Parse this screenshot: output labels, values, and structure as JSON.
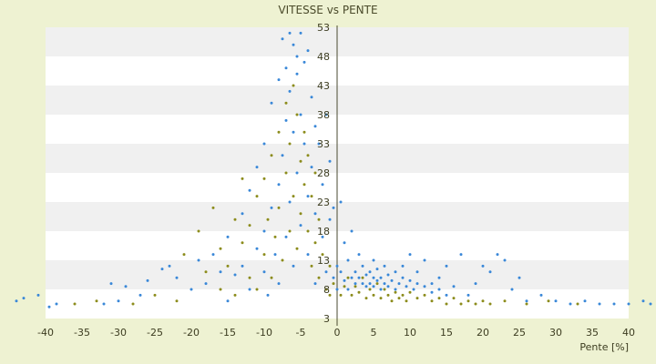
{
  "chart_data": {
    "type": "scatter",
    "title": "VITESSE vs PENTE",
    "xlabel": "Pente [%]",
    "ylabel": "",
    "xlim": [
      -40,
      40
    ],
    "ylim": [
      3,
      53
    ],
    "x_ticks": [
      -40,
      -35,
      -30,
      -25,
      -20,
      -15,
      -10,
      -5,
      0,
      5,
      10,
      15,
      20,
      25,
      30,
      35,
      40
    ],
    "y_ticks": [
      3,
      8,
      13,
      18,
      23,
      28,
      33,
      38,
      43,
      48,
      53
    ],
    "grid": "alternating horizontal bands",
    "legend": "none",
    "colors": {
      "blue_series": "#3a88d8",
      "olive_series": "#8c8c1c",
      "band_light": "#ffffff",
      "band_dark": "#f0f0f0",
      "background": "#eef2d2"
    },
    "series": [
      {
        "color": "#3a88d8",
        "points": [
          [
            -44,
            6
          ],
          [
            -41,
            7
          ],
          [
            -38.5,
            5.5
          ],
          [
            -43,
            6.5
          ],
          [
            -39.5,
            5
          ],
          [
            -32,
            5.5
          ],
          [
            -30,
            6
          ],
          [
            -31,
            9
          ],
          [
            -29,
            8.5
          ],
          [
            -27,
            7
          ],
          [
            -26,
            9.5
          ],
          [
            -24,
            11.5
          ],
          [
            -23,
            12
          ],
          [
            -22,
            10
          ],
          [
            -20,
            8
          ],
          [
            -19,
            13
          ],
          [
            -18,
            9
          ],
          [
            -17,
            14
          ],
          [
            -16,
            11
          ],
          [
            -15,
            17
          ],
          [
            -15,
            6
          ],
          [
            -14,
            10.5
          ],
          [
            -13,
            21
          ],
          [
            -13,
            12
          ],
          [
            -12,
            8
          ],
          [
            -12,
            25
          ],
          [
            -11,
            15
          ],
          [
            -11,
            29
          ],
          [
            -10,
            18
          ],
          [
            -10,
            33
          ],
          [
            -10,
            11
          ],
          [
            -9.5,
            7
          ],
          [
            -9,
            22
          ],
          [
            -9,
            40
          ],
          [
            -8.5,
            14
          ],
          [
            -8,
            26
          ],
          [
            -8,
            44
          ],
          [
            -8,
            9
          ],
          [
            -7.5,
            31
          ],
          [
            -7.5,
            51
          ],
          [
            -7,
            17
          ],
          [
            -7,
            46
          ],
          [
            -7,
            37
          ],
          [
            -6.5,
            52
          ],
          [
            -6.5,
            23
          ],
          [
            -6.5,
            42
          ],
          [
            -6,
            50
          ],
          [
            -6,
            12
          ],
          [
            -6,
            35
          ],
          [
            -5.5,
            48
          ],
          [
            -5.5,
            28
          ],
          [
            -5.5,
            45
          ],
          [
            -5,
            52
          ],
          [
            -5,
            38
          ],
          [
            -5,
            19
          ],
          [
            -4.5,
            47
          ],
          [
            -4.5,
            33
          ],
          [
            -4,
            49
          ],
          [
            -4,
            24
          ],
          [
            -4,
            14
          ],
          [
            -3.5,
            41
          ],
          [
            -3.5,
            29
          ],
          [
            -3,
            36
          ],
          [
            -3,
            21
          ],
          [
            -3,
            9
          ],
          [
            -2.5,
            33
          ],
          [
            -2,
            26
          ],
          [
            -2,
            17
          ],
          [
            -1.5,
            38
          ],
          [
            -1.5,
            11
          ],
          [
            -1,
            30
          ],
          [
            -1,
            20
          ],
          [
            -0.5,
            22
          ],
          [
            -0.5,
            10
          ],
          [
            0,
            12
          ],
          [
            0,
            8
          ],
          [
            0.5,
            23
          ],
          [
            0.5,
            11
          ],
          [
            1,
            16
          ],
          [
            1,
            9.5
          ],
          [
            1.5,
            13
          ],
          [
            1.5,
            8
          ],
          [
            2,
            10
          ],
          [
            2,
            18
          ],
          [
            2.5,
            9
          ],
          [
            2.5,
            11
          ],
          [
            3,
            14
          ],
          [
            3,
            10
          ],
          [
            3.5,
            9
          ],
          [
            3.5,
            12
          ],
          [
            4,
            8.5
          ],
          [
            4,
            10.5
          ],
          [
            4.5,
            11
          ],
          [
            4.5,
            9
          ],
          [
            5,
            13
          ],
          [
            5,
            10
          ],
          [
            5,
            8.5
          ],
          [
            5.5,
            9.5
          ],
          [
            5.5,
            11.5
          ],
          [
            6,
            10
          ],
          [
            6,
            8
          ],
          [
            6.5,
            12
          ],
          [
            6.5,
            9
          ],
          [
            7,
            10.5
          ],
          [
            7,
            8.5
          ],
          [
            7.5,
            9.5
          ],
          [
            8,
            11
          ],
          [
            8,
            8
          ],
          [
            8.5,
            9
          ],
          [
            9,
            10
          ],
          [
            9,
            12
          ],
          [
            9.5,
            8.5
          ],
          [
            10,
            9.5
          ],
          [
            10,
            14
          ],
          [
            10.5,
            8
          ],
          [
            11,
            9
          ],
          [
            11,
            11
          ],
          [
            12,
            8.5
          ],
          [
            12,
            13
          ],
          [
            13,
            9
          ],
          [
            13,
            7.5
          ],
          [
            14,
            8
          ],
          [
            14,
            10
          ],
          [
            15,
            12
          ],
          [
            15,
            7
          ],
          [
            16,
            8.5
          ],
          [
            17,
            14
          ],
          [
            18,
            7
          ],
          [
            19,
            9
          ],
          [
            20,
            12
          ],
          [
            21,
            11
          ],
          [
            22,
            14
          ],
          [
            23,
            13
          ],
          [
            24,
            8
          ],
          [
            25,
            10
          ],
          [
            26,
            6
          ],
          [
            28,
            7
          ],
          [
            30,
            6
          ],
          [
            32,
            5.5
          ],
          [
            34,
            6
          ],
          [
            36,
            5.5
          ],
          [
            38,
            5.5
          ],
          [
            40,
            5.5
          ],
          [
            42,
            6
          ],
          [
            43,
            5.5
          ]
        ]
      },
      {
        "color": "#8c8c1c",
        "points": [
          [
            -36,
            5.5
          ],
          [
            -33,
            6
          ],
          [
            -28,
            5.5
          ],
          [
            -25,
            7
          ],
          [
            -22,
            6
          ],
          [
            -21,
            14
          ],
          [
            -19,
            18
          ],
          [
            -18,
            11
          ],
          [
            -17,
            22
          ],
          [
            -16,
            8
          ],
          [
            -16,
            15
          ],
          [
            -15,
            12
          ],
          [
            -14,
            20
          ],
          [
            -14,
            7
          ],
          [
            -13,
            16
          ],
          [
            -13,
            27
          ],
          [
            -12,
            10
          ],
          [
            -12,
            19
          ],
          [
            -11,
            24
          ],
          [
            -11,
            8
          ],
          [
            -10,
            14
          ],
          [
            -10,
            27
          ],
          [
            -9.5,
            20
          ],
          [
            -9,
            31
          ],
          [
            -9,
            10
          ],
          [
            -8.5,
            17
          ],
          [
            -8,
            35
          ],
          [
            -8,
            22
          ],
          [
            -7.5,
            13
          ],
          [
            -7,
            28
          ],
          [
            -7,
            40
          ],
          [
            -6.5,
            18
          ],
          [
            -6.5,
            33
          ],
          [
            -6,
            24
          ],
          [
            -6,
            43
          ],
          [
            -5.5,
            15
          ],
          [
            -5.5,
            38
          ],
          [
            -5,
            30
          ],
          [
            -5,
            21
          ],
          [
            -4.5,
            26
          ],
          [
            -4.5,
            35
          ],
          [
            -4,
            18
          ],
          [
            -4,
            31
          ],
          [
            -3.5,
            12
          ],
          [
            -3.5,
            24
          ],
          [
            -3,
            28
          ],
          [
            -3,
            16
          ],
          [
            -2.5,
            20
          ],
          [
            -2.5,
            10
          ],
          [
            -2,
            14
          ],
          [
            -1.5,
            8
          ],
          [
            -1,
            12
          ],
          [
            -1,
            7
          ],
          [
            -0.5,
            9
          ],
          [
            0.5,
            7
          ],
          [
            1,
            8.5
          ],
          [
            1.5,
            10
          ],
          [
            2,
            7
          ],
          [
            2.5,
            8.5
          ],
          [
            3,
            7.5
          ],
          [
            3.5,
            10
          ],
          [
            4,
            6.5
          ],
          [
            4.5,
            8
          ],
          [
            5,
            7
          ],
          [
            5.5,
            9
          ],
          [
            6,
            6.5
          ],
          [
            6.5,
            8
          ],
          [
            7,
            7
          ],
          [
            7.5,
            6
          ],
          [
            8,
            7.5
          ],
          [
            8.5,
            6.5
          ],
          [
            9,
            7
          ],
          [
            9.5,
            6
          ],
          [
            10,
            7.5
          ],
          [
            11,
            6.5
          ],
          [
            12,
            7
          ],
          [
            13,
            6
          ],
          [
            14,
            6.5
          ],
          [
            15,
            5.5
          ],
          [
            16,
            6.5
          ],
          [
            17,
            5.5
          ],
          [
            18,
            6
          ],
          [
            19,
            5.5
          ],
          [
            20,
            6
          ],
          [
            21,
            5.5
          ],
          [
            23,
            6
          ],
          [
            26,
            5.5
          ],
          [
            29,
            6
          ],
          [
            33,
            5.5
          ]
        ]
      }
    ]
  }
}
